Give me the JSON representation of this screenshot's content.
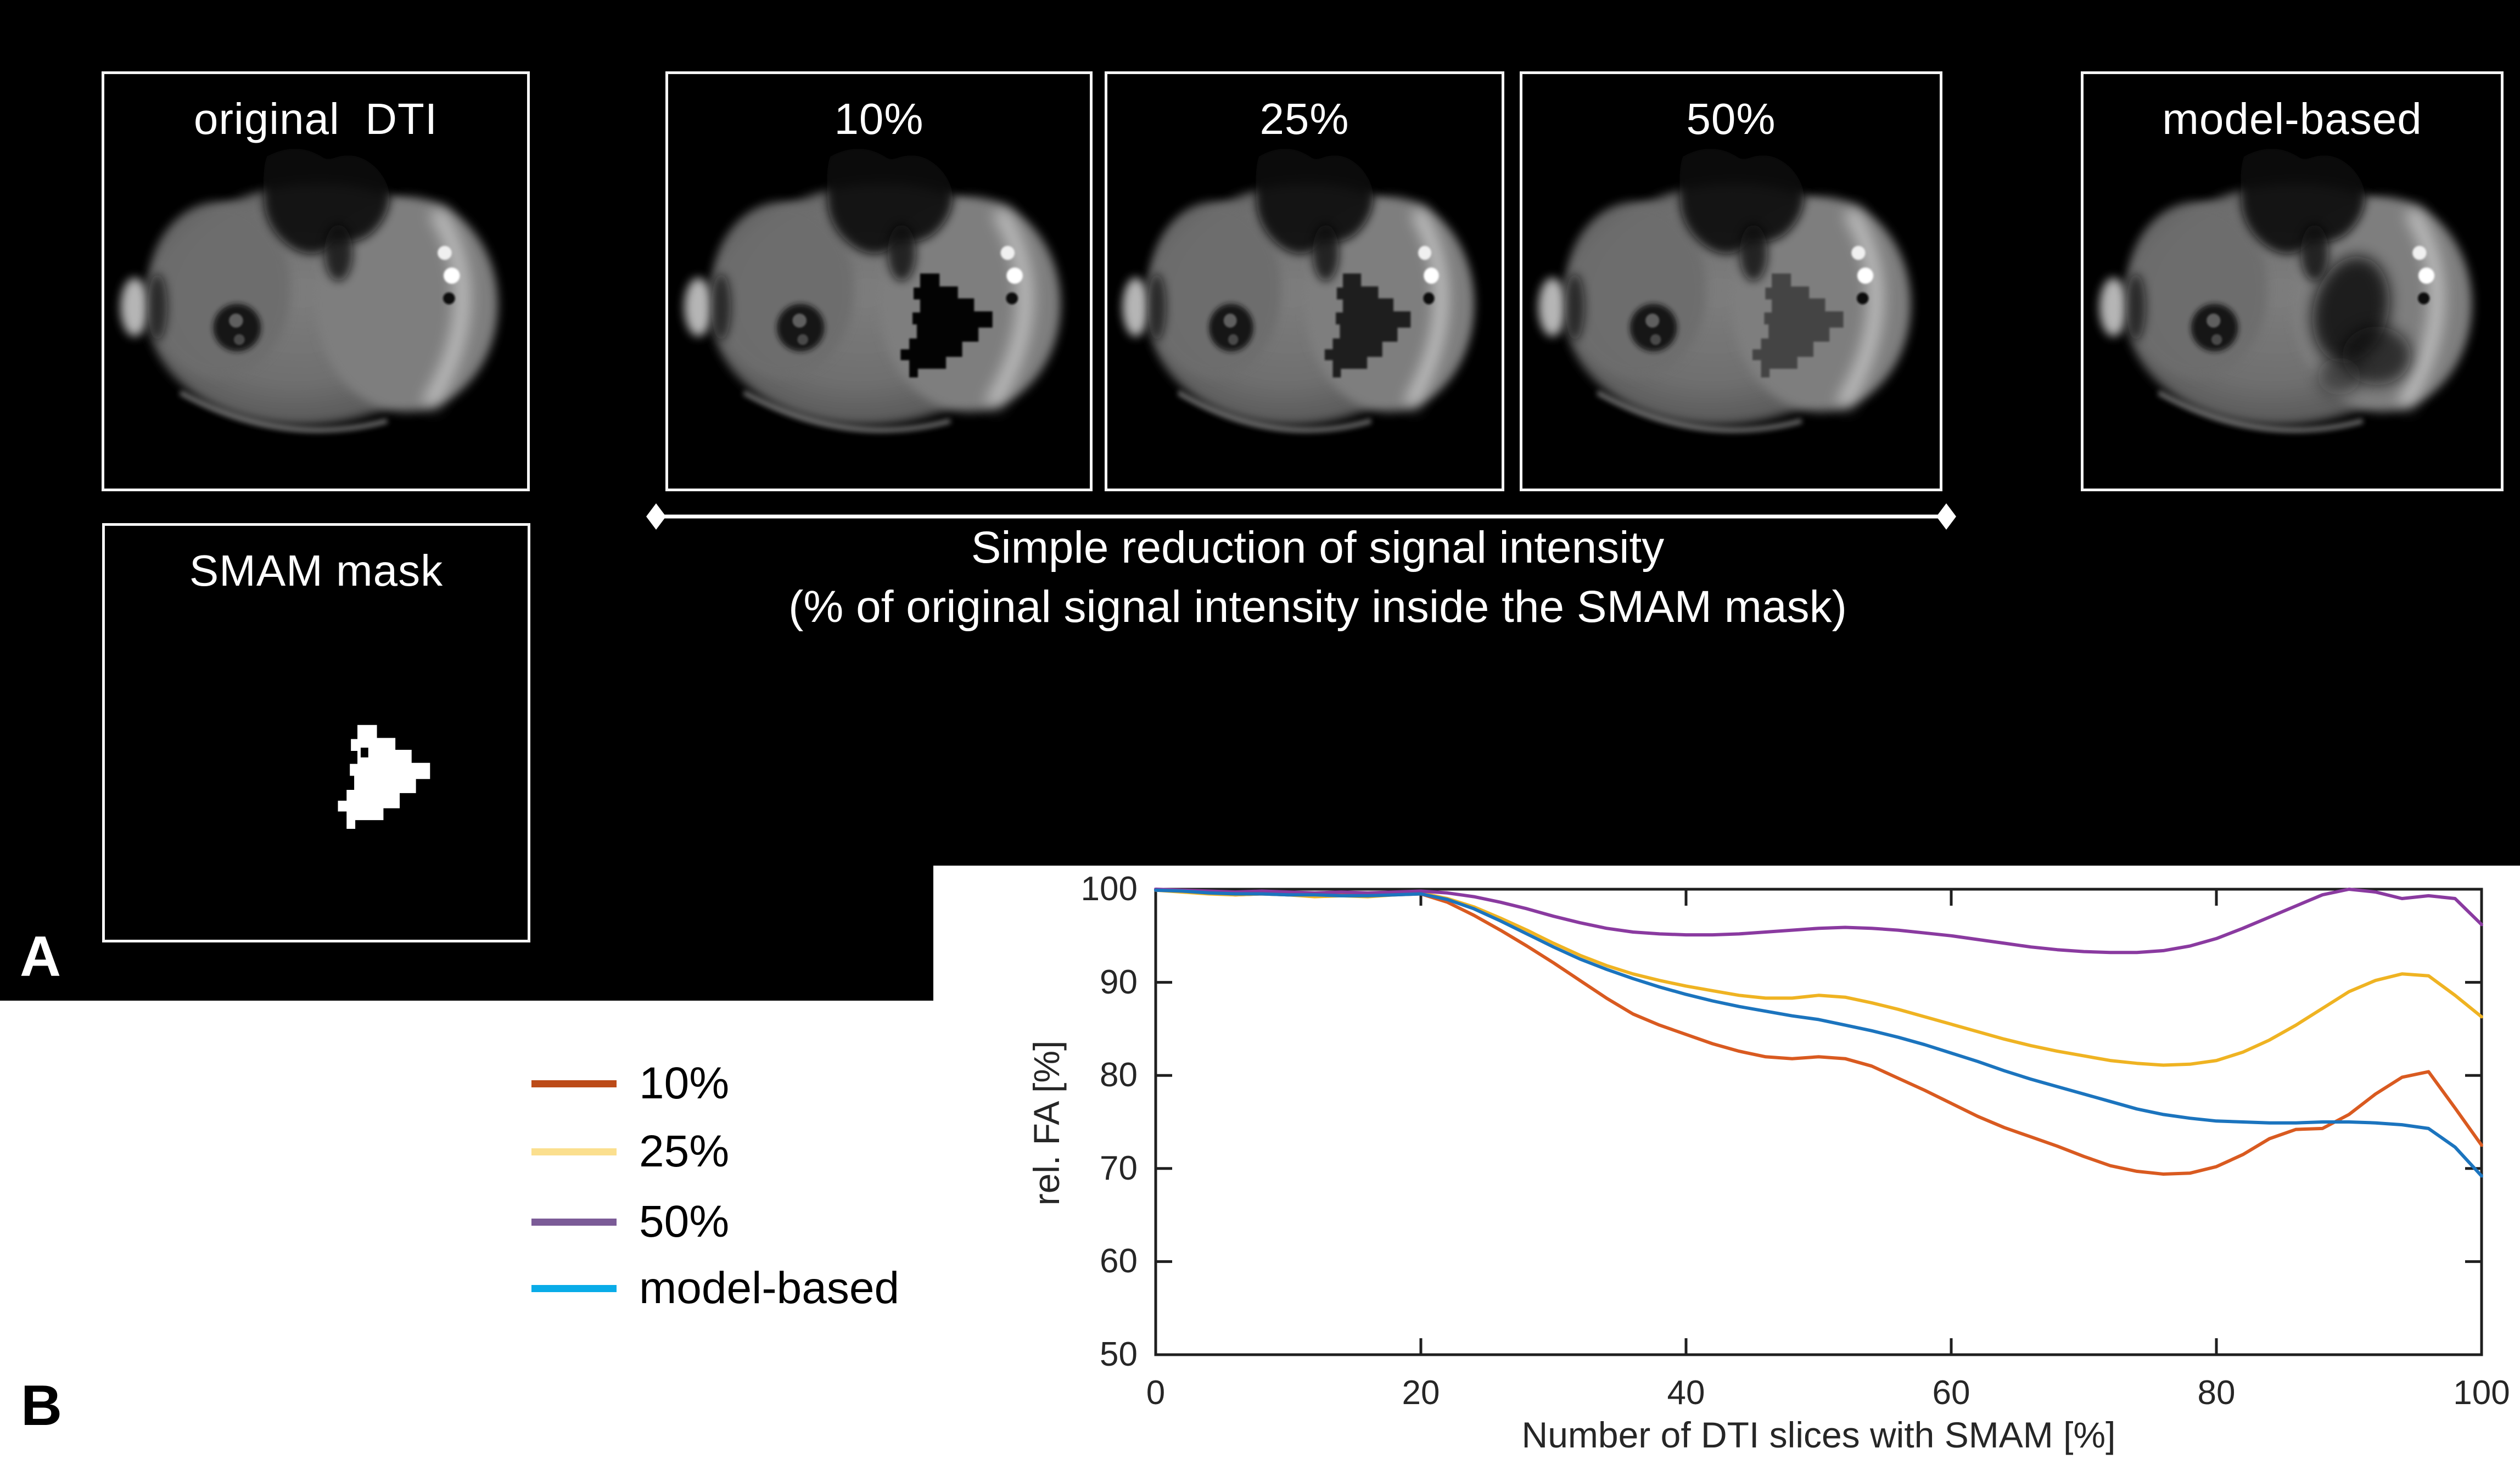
{
  "colors": {
    "panel_background": "#000000",
    "page_background": "#ffffff",
    "box_border": "#f5f5f5",
    "panel_text": "#ffffff",
    "axis_color": "#1f1f1f"
  },
  "panel_a": {
    "label": "A",
    "boxes": [
      {
        "label": "original  DTI"
      },
      {
        "label": "10%"
      },
      {
        "label": "25%"
      },
      {
        "label": "50%"
      },
      {
        "label": "model-based"
      }
    ],
    "mask_box_label": "SMAM mask",
    "caption_line1": "Simple reduction of signal intensity",
    "caption_line2": "(% of original signal intensity inside the SMAM mask)"
  },
  "panel_b": {
    "label": "B",
    "legend": [
      {
        "label": "10%",
        "swatch_color": "#BC4B18"
      },
      {
        "label": "25%",
        "swatch_color": "#FBDF8E"
      },
      {
        "label": "50%",
        "swatch_color": "#7B5B97"
      },
      {
        "label": "model-based",
        "swatch_color": "#09ACE8"
      }
    ]
  },
  "chart_data": {
    "type": "line",
    "title": "",
    "xlabel": "Number of DTI slices with SMAM [%]",
    "ylabel": "rel. FA [%]",
    "xlim": [
      0,
      100
    ],
    "ylim": [
      50,
      100
    ],
    "xticks": [
      0,
      20,
      40,
      60,
      80,
      100
    ],
    "yticks": [
      50,
      60,
      70,
      80,
      90,
      100
    ],
    "grid": false,
    "legend_position": "outside-left",
    "x": [
      0,
      2,
      4,
      6,
      8,
      10,
      12,
      14,
      16,
      18,
      20,
      22,
      24,
      26,
      28,
      30,
      32,
      34,
      36,
      38,
      40,
      42,
      44,
      46,
      48,
      50,
      52,
      54,
      56,
      58,
      60,
      62,
      64,
      66,
      68,
      70,
      72,
      74,
      76,
      78,
      80,
      82,
      84,
      86,
      88,
      90,
      92,
      94,
      96,
      98,
      100
    ],
    "series": [
      {
        "name": "10%",
        "color": "#D95A20",
        "values": [
          99.9,
          99.8,
          99.6,
          99.4,
          99.5,
          99.4,
          99.3,
          99.4,
          99.3,
          99.4,
          99.5,
          98.6,
          97.2,
          95.6,
          93.9,
          92.1,
          90.2,
          88.3,
          86.6,
          85.4,
          84.4,
          83.4,
          82.6,
          82.0,
          81.8,
          82.0,
          81.8,
          81.0,
          79.7,
          78.4,
          77.0,
          75.6,
          74.4,
          73.4,
          72.4,
          71.3,
          70.3,
          69.7,
          69.4,
          69.5,
          70.2,
          71.5,
          73.2,
          74.2,
          74.3,
          75.8,
          78.0,
          79.8,
          80.4,
          76.5,
          72.5
        ]
      },
      {
        "name": "25%",
        "color": "#EFB322",
        "values": [
          99.9,
          99.7,
          99.5,
          99.4,
          99.5,
          99.4,
          99.2,
          99.3,
          99.2,
          99.4,
          99.6,
          99.0,
          98.1,
          96.9,
          95.6,
          94.2,
          92.9,
          91.8,
          90.9,
          90.2,
          89.6,
          89.1,
          88.6,
          88.3,
          88.3,
          88.6,
          88.4,
          87.8,
          87.1,
          86.3,
          85.5,
          84.7,
          83.9,
          83.2,
          82.6,
          82.1,
          81.6,
          81.3,
          81.1,
          81.2,
          81.6,
          82.5,
          83.8,
          85.4,
          87.2,
          89.0,
          90.2,
          90.9,
          90.7,
          88.6,
          86.3
        ]
      },
      {
        "name": "50%",
        "color": "#8A3AA0",
        "values": [
          100,
          99.9,
          99.8,
          99.7,
          99.8,
          99.7,
          99.6,
          99.7,
          99.6,
          99.7,
          99.8,
          99.6,
          99.2,
          98.6,
          97.9,
          97.1,
          96.4,
          95.8,
          95.4,
          95.2,
          95.1,
          95.1,
          95.2,
          95.4,
          95.6,
          95.8,
          95.9,
          95.8,
          95.6,
          95.3,
          95.0,
          94.6,
          94.2,
          93.8,
          93.5,
          93.3,
          93.2,
          93.2,
          93.4,
          93.9,
          94.7,
          95.8,
          97.0,
          98.2,
          99.4,
          100.0,
          99.7,
          99.0,
          99.3,
          99.0,
          96.2
        ]
      },
      {
        "name": "model-based",
        "color": "#1B74BE",
        "values": [
          99.9,
          99.8,
          99.6,
          99.5,
          99.5,
          99.4,
          99.4,
          99.3,
          99.3,
          99.4,
          99.5,
          98.9,
          97.9,
          96.6,
          95.2,
          93.8,
          92.5,
          91.4,
          90.4,
          89.5,
          88.7,
          88.0,
          87.4,
          86.9,
          86.4,
          86.0,
          85.4,
          84.8,
          84.1,
          83.3,
          82.4,
          81.5,
          80.5,
          79.6,
          78.8,
          78.0,
          77.2,
          76.4,
          75.8,
          75.4,
          75.1,
          75.0,
          74.9,
          74.9,
          75.0,
          75.0,
          74.9,
          74.7,
          74.3,
          72.3,
          69.2
        ]
      }
    ]
  }
}
